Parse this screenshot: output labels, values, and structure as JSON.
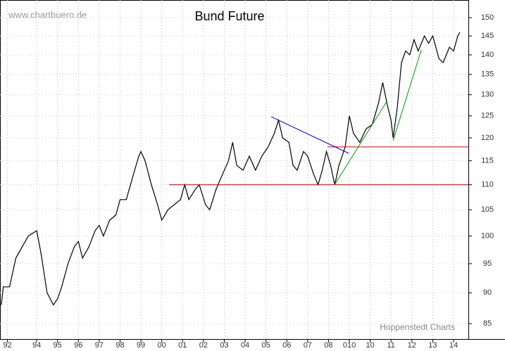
{
  "chart_data": {
    "type": "line",
    "title": "Bund Future",
    "source": "www.chartbuero.de",
    "credit": "Hoppenstedt Charts",
    "log": true,
    "grid": true,
    "color": "#000000",
    "xlim": [
      1992.24,
      2014.71
    ],
    "ylim": [
      82.6,
      155
    ],
    "yticks": [
      85,
      90,
      95,
      100,
      105,
      110,
      115,
      120,
      125,
      130,
      135,
      140,
      145,
      150
    ],
    "xticks": [
      {
        "value": 1992.6,
        "label": "92"
      },
      {
        "value": 1994,
        "label": "94"
      },
      {
        "value": 1995,
        "label": "95"
      },
      {
        "value": 1996,
        "label": "96"
      },
      {
        "value": 1997,
        "label": "97"
      },
      {
        "value": 1998,
        "label": "98"
      },
      {
        "value": 1999,
        "label": "99"
      },
      {
        "value": 2000,
        "label": "00"
      },
      {
        "value": 2001,
        "label": "01"
      },
      {
        "value": 2002,
        "label": "02"
      },
      {
        "value": 2003,
        "label": "03"
      },
      {
        "value": 2004,
        "label": "04"
      },
      {
        "value": 2005,
        "label": "05"
      },
      {
        "value": 2006,
        "label": "06"
      },
      {
        "value": 2007,
        "label": "07"
      },
      {
        "value": 2008,
        "label": "08"
      },
      {
        "value": 2009,
        "label": "010"
      },
      {
        "value": 2010,
        "label": "10"
      },
      {
        "value": 2011,
        "label": "11"
      },
      {
        "value": 2012,
        "label": "12"
      },
      {
        "value": 2013,
        "label": "13"
      },
      {
        "value": 2014,
        "label": "14"
      }
    ],
    "x": [
      1992.3,
      1992.4,
      1992.7,
      1993.0,
      1993.3,
      1993.6,
      1994.0,
      1994.2,
      1994.5,
      1994.8,
      1995.0,
      1995.2,
      1995.5,
      1995.8,
      1996.0,
      1996.2,
      1996.5,
      1996.8,
      1997.0,
      1997.2,
      1997.5,
      1997.8,
      1998.0,
      1998.3,
      1998.5,
      1998.7,
      1998.9,
      1999.0,
      1999.2,
      1999.5,
      1999.8,
      2000.0,
      2000.3,
      2000.6,
      2000.9,
      2001.1,
      2001.3,
      2001.6,
      2001.8,
      2002.1,
      2002.3,
      2002.6,
      2002.9,
      2003.2,
      2003.4,
      2003.6,
      2003.9,
      2004.2,
      2004.5,
      2004.8,
      2005.1,
      2005.4,
      2005.6,
      2005.8,
      2006.1,
      2006.3,
      2006.5,
      2006.8,
      2007.0,
      2007.3,
      2007.5,
      2007.7,
      2007.9,
      2008.1,
      2008.3,
      2008.5,
      2008.8,
      2009.0,
      2009.2,
      2009.5,
      2009.8,
      2010.1,
      2010.4,
      2010.6,
      2010.8,
      2011.0,
      2011.1,
      2011.3,
      2011.5,
      2011.7,
      2011.9,
      2012.1,
      2012.3,
      2012.6,
      2012.8,
      2013.0,
      2013.3,
      2013.5,
      2013.8,
      2014.0,
      2014.2,
      2014.3
    ],
    "values": [
      88,
      91,
      91,
      96,
      98,
      100,
      101,
      97,
      90,
      88,
      89,
      91,
      95,
      98,
      99,
      96,
      98,
      101,
      102,
      100,
      103,
      104,
      107,
      107,
      110,
      113,
      116,
      117,
      115,
      110,
      106,
      103,
      105,
      106,
      107,
      110,
      107,
      109,
      110,
      106,
      105,
      109,
      112,
      115,
      119,
      114,
      113,
      116,
      113,
      116,
      118,
      121,
      124,
      120,
      119,
      114,
      113,
      117,
      116,
      112,
      110,
      113,
      117,
      114,
      110,
      114,
      118,
      125,
      121,
      119,
      122,
      123,
      128,
      133,
      128,
      124,
      120,
      127,
      138,
      141,
      140,
      144,
      141,
      145,
      143,
      145,
      139,
      138,
      142,
      141,
      145,
      146
    ],
    "lines": [
      {
        "color": "#dd0000",
        "x": [
          2000.35,
          2014.71
        ],
        "values": [
          110,
          110
        ]
      },
      {
        "color": "#dd0000",
        "x": [
          2007.95,
          2014.71
        ],
        "values": [
          118,
          118
        ]
      },
      {
        "color": "#0000cc",
        "x": [
          2005.25,
          2008.97
        ],
        "values": [
          124.8,
          116.6
        ]
      },
      {
        "color": "#009900",
        "x": [
          2008.29,
          2010.82
        ],
        "values": [
          110,
          128.6
        ]
      },
      {
        "color": "#009900",
        "x": [
          2011.1,
          2012.45
        ],
        "values": [
          119.4,
          141.3
        ]
      }
    ]
  }
}
